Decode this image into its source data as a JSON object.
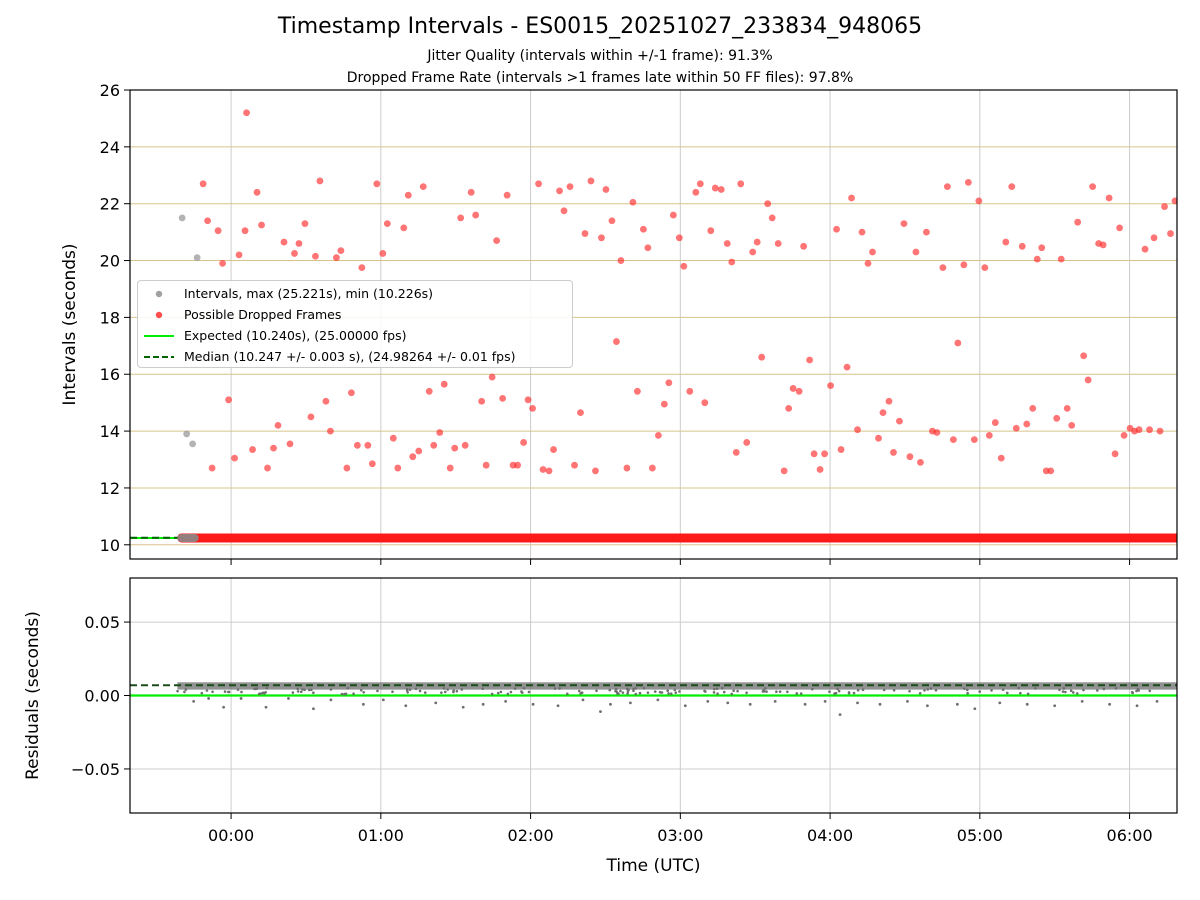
{
  "figure": {
    "title": "Timestamp Intervals - ES0015_20251027_233834_948065",
    "subtitle_1": "Jitter Quality (intervals within +/-1 frame): 91.3%",
    "subtitle_2": "Dropped Frame Rate (intervals >1 frames late within 50 FF files): 97.8%"
  },
  "colors": {
    "grey_point": "#a0a0a0",
    "red_point": "#ff2a2a",
    "expected_line": "#00ee00",
    "median_line": "#006400",
    "hgrid_top": "#d8c48a",
    "grid": "#cccccc",
    "residual_point": "#6e6e6e"
  },
  "legend": {
    "intervals": "Intervals, max (25.221s), min (10.226s)",
    "dropped": "Possible Dropped Frames",
    "expected": "Expected (10.240s), (25.00000 fps)",
    "median": "Median (10.247 +/- 0.003 s), (24.98264 +/- 0.01 fps)"
  },
  "chart_data": [
    {
      "type": "scatter",
      "title": "Timestamp Intervals - ES0015_20251027_233834_948065",
      "xlabel": "",
      "ylabel": "Intervals (seconds)",
      "x_unit": "minutes from 00:00 UTC",
      "xlim": [
        -40.5,
        379
      ],
      "ylim": [
        9.5,
        26
      ],
      "yticks": [
        10,
        12,
        14,
        16,
        18,
        20,
        22,
        24,
        26
      ],
      "ytick_labels": [
        "10",
        "12",
        "14",
        "16",
        "18",
        "20",
        "22",
        "24",
        "26"
      ],
      "xticks": [
        0,
        60,
        120,
        180,
        240,
        300,
        360
      ],
      "grid": true,
      "legend_position": "center-left",
      "expected_interval": 10.24,
      "median_interval": 10.247,
      "baseline_band": {
        "from": -21.5,
        "to": 379,
        "value": 10.24
      },
      "baseline_band_grey": {
        "from": -21.5,
        "to": -13,
        "value": 10.24
      },
      "series": [
        {
          "name": "Intervals, max (25.221s), min (10.226s)",
          "points": [
            [
              -19.6,
              21.5
            ],
            [
              -17.8,
              13.9
            ],
            [
              -15.4,
              13.55
            ],
            [
              -13.6,
              20.1
            ]
          ]
        },
        {
          "name": "Possible Dropped Frames",
          "points": [
            [
              -11.2,
              22.7
            ],
            [
              -9.4,
              21.4
            ],
            [
              -7.6,
              12.7
            ],
            [
              -5.2,
              21.05
            ],
            [
              -3.4,
              19.9
            ],
            [
              -1,
              15.1
            ],
            [
              1.4,
              13.05
            ],
            [
              3.2,
              20.2
            ],
            [
              5.6,
              21.05
            ],
            [
              6.2,
              25.2
            ],
            [
              8.6,
              13.35
            ],
            [
              10.4,
              22.4
            ],
            [
              12.2,
              21.25
            ],
            [
              14.6,
              12.7
            ],
            [
              17,
              13.4
            ],
            [
              18.8,
              14.2
            ],
            [
              21.2,
              20.65
            ],
            [
              23.6,
              13.55
            ],
            [
              25.4,
              20.25
            ],
            [
              27.2,
              20.6
            ],
            [
              29.6,
              21.3
            ],
            [
              32,
              14.5
            ],
            [
              33.8,
              20.15
            ],
            [
              35.6,
              22.8
            ],
            [
              38,
              15.05
            ],
            [
              39.8,
              14
            ],
            [
              42.2,
              20.1
            ],
            [
              44,
              20.35
            ],
            [
              46.4,
              12.7
            ],
            [
              48.2,
              15.35
            ],
            [
              50.6,
              13.5
            ],
            [
              52.4,
              19.75
            ],
            [
              54.8,
              13.5
            ],
            [
              56.6,
              12.85
            ],
            [
              58.4,
              22.7
            ],
            [
              60.8,
              20.25
            ],
            [
              62.6,
              21.3
            ],
            [
              65,
              13.75
            ],
            [
              66.8,
              12.7
            ],
            [
              69.2,
              21.15
            ],
            [
              71,
              22.3
            ],
            [
              72.8,
              13.1
            ],
            [
              75.2,
              13.3
            ],
            [
              77,
              22.6
            ],
            [
              79.4,
              15.4
            ],
            [
              81.2,
              13.5
            ],
            [
              83.6,
              13.95
            ],
            [
              85.4,
              15.65
            ],
            [
              87.8,
              12.7
            ],
            [
              89.6,
              13.4
            ],
            [
              92,
              21.5
            ],
            [
              93.8,
              13.5
            ],
            [
              96.2,
              22.4
            ],
            [
              98,
              21.6
            ],
            [
              100.4,
              15.05
            ],
            [
              102.2,
              12.8
            ],
            [
              104.6,
              15.9
            ],
            [
              106.4,
              20.7
            ],
            [
              108.8,
              15.15
            ],
            [
              110.6,
              22.3
            ],
            [
              113,
              12.8
            ],
            [
              114.8,
              12.8
            ],
            [
              117.2,
              13.6
            ],
            [
              119,
              15.1
            ],
            [
              120.8,
              14.8
            ],
            [
              123.2,
              22.7
            ],
            [
              125,
              12.65
            ],
            [
              127.4,
              12.6
            ],
            [
              129.2,
              13.35
            ],
            [
              131.6,
              22.45
            ],
            [
              133.4,
              21.75
            ],
            [
              135.8,
              22.6
            ],
            [
              137.6,
              12.8
            ],
            [
              140,
              14.65
            ],
            [
              141.8,
              20.95
            ],
            [
              144.2,
              22.8
            ],
            [
              146,
              12.6
            ],
            [
              148.4,
              20.8
            ],
            [
              150.2,
              22.5
            ],
            [
              152.6,
              21.4
            ],
            [
              154.4,
              17.15
            ],
            [
              156.2,
              20
            ],
            [
              158.6,
              12.7
            ],
            [
              161,
              22.05
            ],
            [
              162.8,
              15.4
            ],
            [
              165.2,
              21.1
            ],
            [
              167,
              20.45
            ],
            [
              168.8,
              12.7
            ],
            [
              171.2,
              13.85
            ],
            [
              173.6,
              14.95
            ],
            [
              175.4,
              15.7
            ],
            [
              177.2,
              21.6
            ],
            [
              179.6,
              20.8
            ],
            [
              181.4,
              19.8
            ],
            [
              183.8,
              15.4
            ],
            [
              186.2,
              22.4
            ],
            [
              188,
              22.7
            ],
            [
              189.8,
              15
            ],
            [
              192.2,
              21.05
            ],
            [
              194,
              22.55
            ],
            [
              196.4,
              22.5
            ],
            [
              198.8,
              20.6
            ],
            [
              200.6,
              19.95
            ],
            [
              202.4,
              13.25
            ],
            [
              204.2,
              22.7
            ],
            [
              206.6,
              13.6
            ],
            [
              209,
              20.3
            ],
            [
              210.8,
              20.65
            ],
            [
              212.6,
              16.6
            ],
            [
              215,
              22
            ],
            [
              216.8,
              21.5
            ],
            [
              219.2,
              20.6
            ],
            [
              221.6,
              12.6
            ],
            [
              223.4,
              14.8
            ],
            [
              225.2,
              15.5
            ],
            [
              227.6,
              15.4
            ],
            [
              229.4,
              20.5
            ],
            [
              231.8,
              16.5
            ],
            [
              233.6,
              13.2
            ],
            [
              236,
              12.65
            ],
            [
              237.8,
              13.2
            ],
            [
              240.2,
              15.6
            ],
            [
              242.6,
              21.1
            ],
            [
              244.4,
              13.35
            ],
            [
              246.8,
              16.25
            ],
            [
              248.6,
              22.2
            ],
            [
              251,
              14.05
            ],
            [
              252.8,
              21
            ],
            [
              255.2,
              19.9
            ],
            [
              257,
              20.3
            ],
            [
              259.4,
              13.75
            ],
            [
              261.2,
              14.65
            ],
            [
              263.6,
              15.05
            ],
            [
              265.4,
              13.25
            ],
            [
              267.8,
              14.35
            ],
            [
              269.6,
              21.3
            ],
            [
              272,
              13.1
            ],
            [
              274.4,
              20.3
            ],
            [
              276.2,
              12.9
            ],
            [
              278.6,
              21
            ],
            [
              281,
              14
            ],
            [
              282.8,
              13.95
            ],
            [
              285.2,
              19.75
            ],
            [
              287,
              22.6
            ],
            [
              289.4,
              13.7
            ],
            [
              291.2,
              17.1
            ],
            [
              293.6,
              19.85
            ],
            [
              295.4,
              22.75
            ],
            [
              297.8,
              13.7
            ],
            [
              299.6,
              22.1
            ],
            [
              302,
              19.75
            ],
            [
              303.8,
              13.85
            ],
            [
              306.2,
              14.3
            ],
            [
              308.6,
              13.05
            ],
            [
              310.4,
              20.65
            ],
            [
              312.8,
              22.6
            ],
            [
              314.6,
              14.1
            ],
            [
              317,
              20.5
            ],
            [
              318.8,
              14.25
            ],
            [
              321.2,
              14.8
            ],
            [
              323,
              20.05
            ],
            [
              324.8,
              20.45
            ],
            [
              326.6,
              12.6
            ],
            [
              328.4,
              12.6
            ],
            [
              330.8,
              14.45
            ],
            [
              332.6,
              20.05
            ],
            [
              335,
              14.8
            ],
            [
              336.8,
              14.2
            ],
            [
              339.2,
              21.35
            ],
            [
              341.6,
              16.65
            ],
            [
              343.4,
              15.8
            ],
            [
              345.2,
              22.6
            ],
            [
              347.6,
              20.6
            ],
            [
              349.4,
              20.55
            ],
            [
              351.8,
              22.2
            ],
            [
              354.2,
              13.2
            ],
            [
              356,
              21.15
            ],
            [
              357.8,
              13.85
            ],
            [
              360.2,
              14.1
            ],
            [
              362,
              14
            ],
            [
              363.8,
              14.05
            ],
            [
              366.2,
              20.4
            ],
            [
              368,
              14.05
            ],
            [
              369.8,
              20.8
            ],
            [
              372.2,
              14
            ],
            [
              374,
              21.9
            ],
            [
              376.4,
              20.95
            ],
            [
              378.2,
              22.1
            ]
          ]
        }
      ]
    },
    {
      "type": "scatter",
      "title": "",
      "xlabel": "Time (UTC)",
      "ylabel": "Residuals (seconds)",
      "x_unit": "minutes from 00:00 UTC",
      "xlim": [
        -40.5,
        379
      ],
      "ylim": [
        -0.08,
        0.08
      ],
      "yticks": [
        -0.05,
        0,
        0.05
      ],
      "ytick_labels": [
        "−0.05",
        "0.00",
        "0.05"
      ],
      "xticks": [
        0,
        60,
        120,
        180,
        240,
        300,
        360
      ],
      "xtick_labels": [
        "00:00",
        "01:00",
        "02:00",
        "03:00",
        "04:00",
        "05:00",
        "06:00"
      ],
      "grid": true,
      "expected_residual": 0,
      "median_residual": 0.007,
      "residual_points": {
        "x_range": [
          -21.5,
          379
        ],
        "typical_band": [
          0.004,
          0.009
        ],
        "dips": [
          [
            -15,
            -0.004
          ],
          [
            -9,
            -0.002
          ],
          [
            -3,
            -0.008
          ],
          [
            4,
            -0.002
          ],
          [
            14,
            -0.008
          ],
          [
            23,
            -0.002
          ],
          [
            33,
            -0.009
          ],
          [
            40,
            -0.003
          ],
          [
            53,
            -0.006
          ],
          [
            61,
            -0.003
          ],
          [
            70,
            -0.007
          ],
          [
            82,
            -0.005
          ],
          [
            93,
            -0.008
          ],
          [
            101,
            -0.006
          ],
          [
            110,
            -0.004
          ],
          [
            121,
            -0.006
          ],
          [
            131,
            -0.007
          ],
          [
            141,
            -0.003
          ],
          [
            148,
            -0.011
          ],
          [
            152,
            -0.006
          ],
          [
            160,
            -0.005
          ],
          [
            171,
            -0.003
          ],
          [
            182,
            -0.007
          ],
          [
            191,
            -0.004
          ],
          [
            199,
            -0.005
          ],
          [
            208,
            -0.006
          ],
          [
            218,
            -0.004
          ],
          [
            230,
            -0.006
          ],
          [
            238,
            -0.004
          ],
          [
            244,
            -0.013
          ],
          [
            251,
            -0.005
          ],
          [
            260,
            -0.006
          ],
          [
            271,
            -0.004
          ],
          [
            279,
            -0.007
          ],
          [
            291,
            -0.006
          ],
          [
            298,
            -0.009
          ],
          [
            308,
            -0.005
          ],
          [
            319,
            -0.006
          ],
          [
            330,
            -0.007
          ],
          [
            341,
            -0.004
          ],
          [
            352,
            -0.006
          ],
          [
            363,
            -0.007
          ],
          [
            371,
            -0.004
          ]
        ]
      }
    }
  ]
}
